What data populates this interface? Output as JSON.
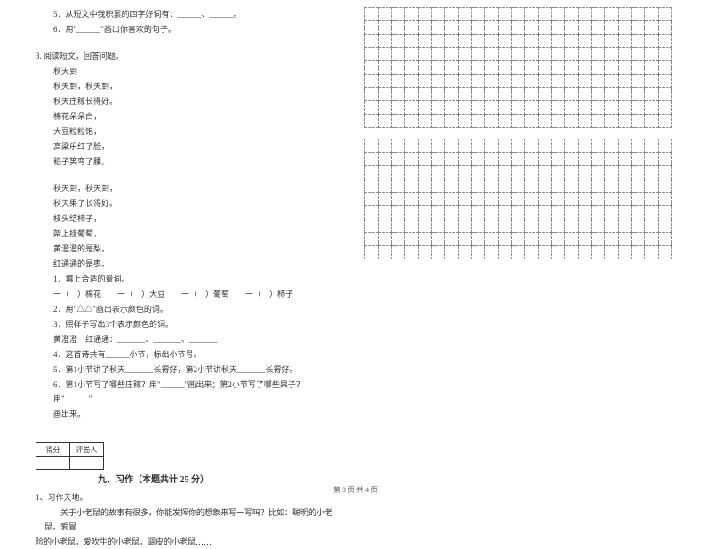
{
  "leftColumn": {
    "intro": [
      {
        "text": "5．从短文中我积累的四字好词有：______、______。",
        "cls": "indent1"
      },
      {
        "text": "6．用\"______\"画出你喜欢的句子。",
        "cls": "indent1"
      }
    ],
    "q3": [
      {
        "text": "3. 阅读短文，回答问题。",
        "cls": ""
      },
      {
        "text": "秋天到",
        "cls": "indent1"
      },
      {
        "text": "秋天到，秋天到，",
        "cls": "indent1"
      },
      {
        "text": "秋天庄稼长得好。",
        "cls": "indent1"
      },
      {
        "text": "棉花朵朵白，",
        "cls": "indent1"
      },
      {
        "text": "大豆粒粒饱，",
        "cls": "indent1"
      },
      {
        "text": "高粱乐红了脸，",
        "cls": "indent1"
      },
      {
        "text": "稻子笑弯了腰。",
        "cls": "indent1"
      }
    ],
    "stanza2": [
      {
        "text": "秋天到，秋天到，",
        "cls": "indent1"
      },
      {
        "text": "秋天果子长得好。",
        "cls": "indent1"
      },
      {
        "text": "枝头结柿子，",
        "cls": "indent1"
      },
      {
        "text": "架上挂葡萄，",
        "cls": "indent1"
      },
      {
        "text": "黄澄澄的是梨，",
        "cls": "indent1"
      },
      {
        "text": "红通通的是枣。",
        "cls": "indent1"
      }
    ],
    "subquestions": [
      {
        "text": "1．填上合适的量词。",
        "cls": "indent1"
      },
      {
        "text": "一（　）棉花　　一（　）大豆　　一（　）葡萄　　一（　）柿子",
        "cls": "indent1"
      },
      {
        "text": "2．用\"△△\"画出表示颜色的词。",
        "cls": "indent1"
      },
      {
        "text": "3．照样子写出3个表示颜色的词。",
        "cls": "indent1"
      },
      {
        "text": "黄澄澄　红通通：_______、_______、_______",
        "cls": "indent1"
      },
      {
        "text": "4．这首诗共有______小节，标出小节号。",
        "cls": "indent1"
      },
      {
        "text": "5．第1小节讲了秋天_______长得好，第2小节讲秋天_______长得好。",
        "cls": "indent1"
      },
      {
        "text": "6．第1小节写了哪些庄稼？用\"______\"画出来；第2小节写了哪些果子？用\"______\"",
        "cls": "indent1"
      },
      {
        "text": "画出来。",
        "cls": "indent1"
      }
    ],
    "scoreHeaders": {
      "score": "得分",
      "grader": "评卷人"
    },
    "sectionTitle": "九、习作（本题共计 25 分）",
    "writing": [
      {
        "text": "1、习作天地。",
        "cls": ""
      },
      {
        "text": "　　关于小老鼠的故事有很多，你能发挥你的想象来写一写吗？比如：聪明的小老鼠，爱冒",
        "cls": "indent2"
      },
      {
        "text": "险的小老鼠，爱吹牛的小老鼠，调皮的小老鼠……",
        "cls": ""
      }
    ]
  },
  "grid": {
    "rows": 9,
    "cols": 23
  },
  "footer": "第 3 页 共 4 页"
}
